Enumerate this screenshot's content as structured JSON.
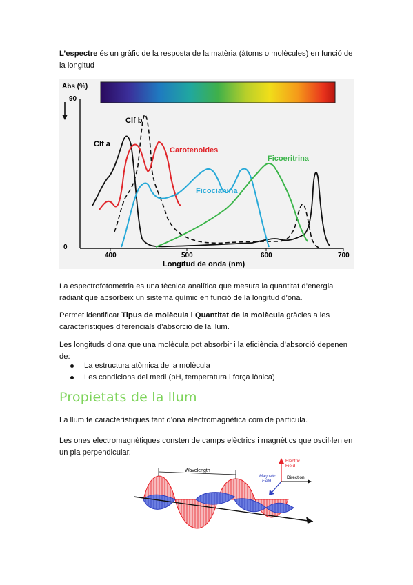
{
  "intro": {
    "term": "L’espectre",
    "rest": " és un gràfic de la resposta de la matèria (àtoms o molècules) en funció de la longitud"
  },
  "spectrum_figure": {
    "ylabel": "Abs (%)",
    "y_top_tick": "90",
    "y_bottom_tick": "0",
    "xlabel": "Longitud de onda (nm)",
    "x_ticks": [
      "400",
      "500",
      "600",
      "700"
    ],
    "labels": {
      "clf_b": "Clf b",
      "clf_a": "Clf a",
      "carotenoides": "Carotenoides",
      "ficoeritrina": "Ficoeritrina",
      "ficocianina": "Ficocianina"
    },
    "colors": {
      "clf_a": "#111111",
      "clf_b": "#111111",
      "carotenoides": "#e0262b",
      "ficocianina": "#27a9d8",
      "ficoeritrina": "#3bb54a"
    }
  },
  "paragraphs": {
    "p1": "La espectrofotometria es una tècnica analítica que mesura la quantitat d’energia radiant que absorbeix un sistema químic en funció de la longitud d’ona.",
    "p2_a": "Permet identificar ",
    "p2_b": "Tipus de molècula i Quantitat de la molècula",
    "p2_c": " gràcies a les característiques diferencials d’absorció de la llum.",
    "p3": "Les longituds d’ona que una molècula pot absorbir i la eficiència d’absorció depenen de:",
    "bullets": [
      "La estructura atòmica de la molècula",
      "Les condicions del medi (pH, temperatura i força iònica)"
    ],
    "section_title": "Propietats de la llum",
    "p4": "La llum te característiques tant d’ona electromagnètica com de partícula.",
    "p5": "Les ones electromagnètiques consten de camps elèctrics i magnètics que oscil·len en un pla perpendicular."
  },
  "wave_figure": {
    "wavelength_label": "Wavelength",
    "electric_label_1": "Electric",
    "electric_label_2": "Field",
    "magnetic_label_1": "Magnetic",
    "magnetic_label_2": "Field",
    "direction_label": "Direction",
    "colors": {
      "electric": "#e8232a",
      "magnetic": "#2f3fbf"
    }
  }
}
